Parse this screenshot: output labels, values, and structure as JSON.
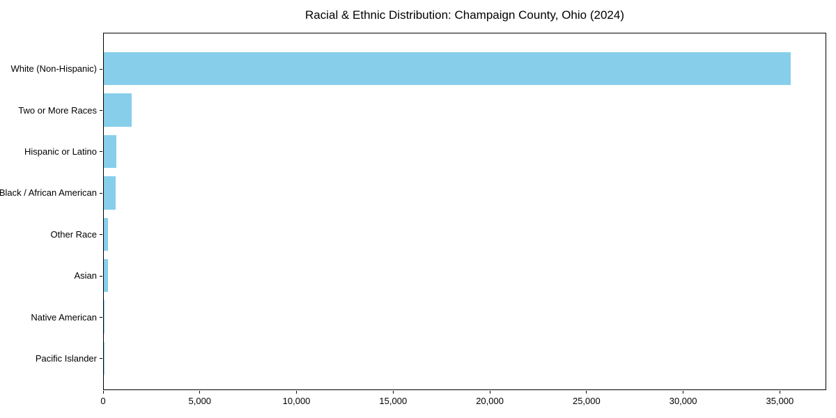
{
  "chart_data": {
    "type": "bar",
    "orientation": "horizontal",
    "title": "Racial & Ethnic Distribution: Champaign County, Ohio (2024)",
    "xlabel": "",
    "ylabel": "",
    "categories": [
      "White (Non-Hispanic)",
      "Two or More Races",
      "Hispanic or Latino",
      "Black / African American",
      "Other Race",
      "Asian",
      "Native American",
      "Pacific Islander"
    ],
    "values": [
      35600,
      1430,
      660,
      620,
      220,
      200,
      50,
      20
    ],
    "xlim": [
      0,
      37400
    ],
    "x_ticks": [
      0,
      5000,
      10000,
      15000,
      20000,
      25000,
      30000,
      35000
    ],
    "x_tick_labels": [
      "0",
      "5,000",
      "10,000",
      "15,000",
      "20,000",
      "25,000",
      "30,000",
      "35,000"
    ],
    "bar_color": "#87CEEB",
    "grid": false,
    "legend": false
  }
}
